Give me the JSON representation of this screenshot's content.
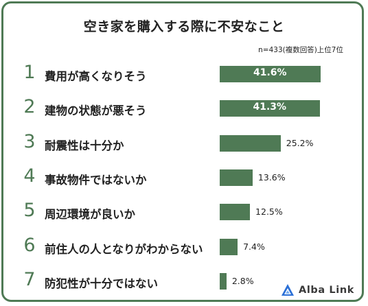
{
  "title": "空き家を購入する際に不安なこと",
  "note": "n=433(複数回答)上位7位",
  "logo": "Alba Link",
  "colors": {
    "bar": "#4f7a55",
    "frame": "#4f7a55",
    "logo_blue": "#2a6fd6"
  },
  "chart_data": {
    "type": "bar",
    "orientation": "horizontal",
    "categories": [
      "費用が高くなりそう",
      "建物の状態が悪そう",
      "耐震性は十分か",
      "事故物件ではないか",
      "周辺環境が良いか",
      "前住人の人となりがわからない",
      "防犯性が十分ではない"
    ],
    "ranks": [
      "1",
      "2",
      "3",
      "4",
      "5",
      "6",
      "7"
    ],
    "values": [
      41.6,
      41.3,
      25.2,
      13.6,
      12.5,
      7.4,
      2.8
    ],
    "value_labels": [
      "41.6%",
      "41.3%",
      "25.2%",
      "13.6%",
      "12.5%",
      "7.4%",
      "2.8%"
    ],
    "unit": "%",
    "xlim": [
      0,
      42
    ]
  }
}
